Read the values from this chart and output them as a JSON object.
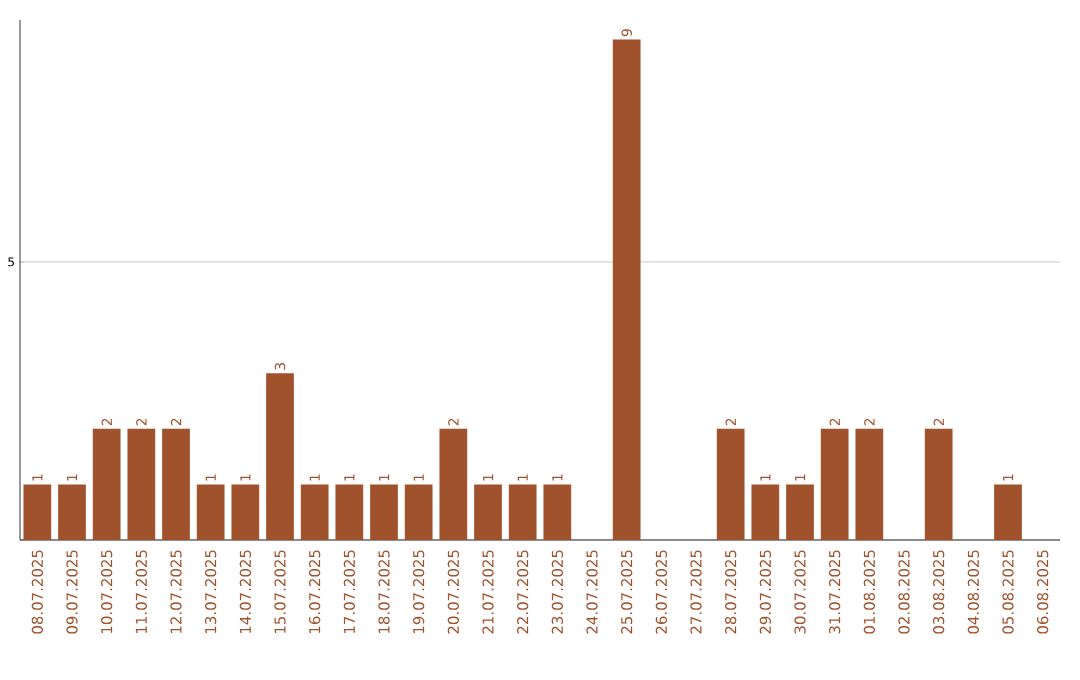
{
  "chart_data": {
    "type": "bar",
    "categories": [
      "08.07.2025",
      "09.07.2025",
      "10.07.2025",
      "11.07.2025",
      "12.07.2025",
      "13.07.2025",
      "14.07.2025",
      "15.07.2025",
      "16.07.2025",
      "17.07.2025",
      "18.07.2025",
      "19.07.2025",
      "20.07.2025",
      "21.07.2025",
      "22.07.2025",
      "23.07.2025",
      "24.07.2025",
      "25.07.2025",
      "26.07.2025",
      "27.07.2025",
      "28.07.2025",
      "29.07.2025",
      "30.07.2025",
      "31.07.2025",
      "01.08.2025",
      "02.08.2025",
      "03.08.2025",
      "04.08.2025",
      "05.08.2025",
      "06.08.2025"
    ],
    "values": [
      1,
      1,
      2,
      2,
      2,
      1,
      1,
      3,
      1,
      1,
      1,
      1,
      2,
      1,
      1,
      1,
      0,
      9,
      0,
      0,
      2,
      1,
      1,
      2,
      2,
      0,
      2,
      0,
      1,
      0
    ],
    "value_labels": [
      "1",
      "1",
      "2",
      "2",
      "2",
      "1",
      "1",
      "3",
      "1",
      "1",
      "1",
      "1",
      "2",
      "1",
      "1",
      "1",
      null,
      "9",
      null,
      null,
      "2",
      "1",
      "1",
      "2",
      "2",
      null,
      "2",
      null,
      "1",
      null
    ],
    "color": "#a0522d",
    "ylim": [
      0,
      9.35
    ],
    "yticks": [
      {
        "value": 0,
        "label": null
      },
      5
    ],
    "grid": "y"
  }
}
